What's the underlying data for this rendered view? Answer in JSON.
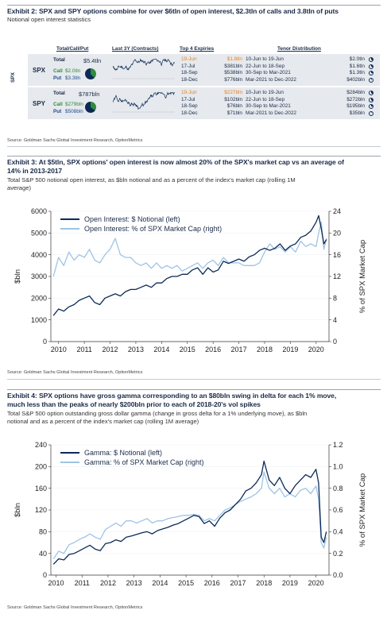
{
  "exhibit2": {
    "title": "Exhibit 2: SPX and SPY options combine for over $6tln of open interest, $2.3tln of calls and 3.8tln of puts",
    "subtitle": "Notional open interest statistics",
    "headers": {
      "tcp": "Total/Call/Put",
      "last3y": "Last 3Y (Contracts)",
      "top4": "Top 4 Expiries",
      "tenor": "Tenor Distribution"
    },
    "side_label": "SPX",
    "rows": [
      {
        "ticker": "SPX",
        "total_label": "Total",
        "total_value": "$5.4tln",
        "call_label": "Call",
        "call_value": "$2.0tln",
        "put_label": "Put",
        "put_value": "$3.3tln",
        "call_share": 0.38,
        "expiries": [
          {
            "date": "19-Jun",
            "value": "$1.8tln",
            "highlight": true
          },
          {
            "date": "17-Jul",
            "value": "$381bln",
            "highlight": false
          },
          {
            "date": "18-Sep",
            "value": "$538bln",
            "highlight": false
          },
          {
            "date": "18-Dec",
            "value": "$776bln",
            "highlight": false
          }
        ],
        "tenors": [
          {
            "range": "10-Jun to 19-Jun",
            "value": "$2.0tln",
            "share": 0.37
          },
          {
            "range": "22-Jun to 18-Sep",
            "value": "$1.6tln",
            "share": 0.3
          },
          {
            "range": "30-Sep to Mar-2021",
            "value": "$1.3tln",
            "share": 0.24
          },
          {
            "range": "Mar-2021 to Dec-2022",
            "value": "$402bln",
            "share": 0.07
          }
        ]
      },
      {
        "ticker": "SPY",
        "total_label": "Total",
        "total_value": "$787bln",
        "call_label": "Call",
        "call_value": "$279bln",
        "put_label": "Put",
        "put_value": "$508bln",
        "call_share": 0.35,
        "expiries": [
          {
            "date": "19-Jun",
            "value": "$227bln",
            "highlight": true
          },
          {
            "date": "17-Jul",
            "value": "$102bln",
            "highlight": false
          },
          {
            "date": "18-Sep",
            "value": "$76bln",
            "highlight": false
          },
          {
            "date": "18-Dec",
            "value": "$71bln",
            "highlight": false
          }
        ],
        "tenors": [
          {
            "range": "10-Jun to 19-Jun",
            "value": "$284bln",
            "share": 0.36
          },
          {
            "range": "22-Jun to 18-Sep",
            "value": "$272bln",
            "share": 0.35
          },
          {
            "range": "30-Sep to Mar-2021",
            "value": "$195bln",
            "share": 0.25
          },
          {
            "range": "Mar-2021 to Dec-2022",
            "value": "$35bln",
            "share": 0.04
          }
        ]
      }
    ],
    "source": "Source: Goldman Sachs Global Investment Research, OptionMetrics"
  },
  "exhibit3": {
    "title_line1": "Exhibit 3: At $5tln, SPX options' open interest is now almost 20% of the SPX's market cap vs an average of",
    "title_line2": "14% in 2013-2017",
    "subtitle_line1": "Total S&P 500 notional open interest, as $bln notional and as a percent of the index's market cap (rolling 1M",
    "subtitle_line2": "average)",
    "source": "Source: Goldman Sachs Global Investment Research, OptionMetrics"
  },
  "exhibit4": {
    "title_line1": "Exhibit 4: SPX options have gross gamma corresponding to an $80bln swing in delta for each 1% move,",
    "title_line2": "much less than the peaks of nearly $200bln prior to each of 2018-20's vol spikes",
    "subtitle_line1": "Total S&P 500 option outstanding gross dollar gamma (change in gross delta for a 1% underlying move), as $bln",
    "subtitle_line2": "notional and as a percent of the index's market cap (rolling 1M average)",
    "source": "Source: Goldman Sachs Global Investment Research, OptionMetrics"
  },
  "colors": {
    "dark": "#0c2a57",
    "light": "#9ec3e6",
    "call": "#2e8c3c",
    "put": "#1d4d8c",
    "highlight": "#e8811a"
  },
  "chart_data": [
    {
      "type": "line",
      "title": "",
      "x_range": [
        2009.7,
        2020.5
      ],
      "x_ticks": [
        2010,
        2011,
        2012,
        2013,
        2014,
        2015,
        2016,
        2017,
        2018,
        2019,
        2020
      ],
      "ylabel": "$bln",
      "ylim": [
        0,
        6000
      ],
      "y_ticks": [
        0,
        1000,
        2000,
        3000,
        4000,
        5000,
        6000
      ],
      "y2label": "% of SPX Market Cap",
      "y2lim": [
        0,
        24
      ],
      "y2_ticks": [
        0,
        4,
        8,
        12,
        16,
        20,
        24
      ],
      "legend_position": "top-left",
      "series": [
        {
          "name": "Open Interest: $ Notional (left)",
          "axis": "left",
          "color": "#0c2a57",
          "x": [
            2009.8,
            2010.0,
            2010.2,
            2010.4,
            2010.6,
            2010.8,
            2011.0,
            2011.2,
            2011.4,
            2011.6,
            2011.8,
            2012.0,
            2012.2,
            2012.4,
            2012.6,
            2012.8,
            2013.0,
            2013.2,
            2013.4,
            2013.6,
            2013.8,
            2014.0,
            2014.2,
            2014.4,
            2014.6,
            2014.8,
            2015.0,
            2015.2,
            2015.4,
            2015.6,
            2015.8,
            2016.0,
            2016.2,
            2016.4,
            2016.6,
            2016.8,
            2017.0,
            2017.2,
            2017.4,
            2017.6,
            2017.8,
            2018.0,
            2018.2,
            2018.4,
            2018.6,
            2018.8,
            2019.0,
            2019.2,
            2019.4,
            2019.6,
            2019.8,
            2020.0,
            2020.1,
            2020.2,
            2020.3,
            2020.4
          ],
          "y": [
            1200,
            1500,
            1400,
            1600,
            1700,
            1900,
            2000,
            2100,
            1800,
            1700,
            2000,
            2100,
            2200,
            2100,
            2300,
            2400,
            2400,
            2500,
            2600,
            2500,
            2700,
            2700,
            2900,
            3000,
            3000,
            3100,
            3100,
            3300,
            3400,
            3100,
            3400,
            3200,
            3300,
            3700,
            3600,
            3700,
            3800,
            3700,
            3900,
            4000,
            4200,
            4300,
            4200,
            4300,
            4500,
            4200,
            4400,
            4500,
            4800,
            4900,
            5100,
            5500,
            5800,
            5200,
            4500,
            4700
          ]
        },
        {
          "name": "Open Interest: % of SPX Market Cap (right)",
          "axis": "right",
          "color": "#9ec3e6",
          "x": [
            2009.8,
            2010.0,
            2010.2,
            2010.4,
            2010.6,
            2010.8,
            2011.0,
            2011.2,
            2011.4,
            2011.6,
            2011.8,
            2012.0,
            2012.2,
            2012.4,
            2012.6,
            2012.8,
            2013.0,
            2013.2,
            2013.4,
            2013.6,
            2013.8,
            2014.0,
            2014.2,
            2014.4,
            2014.6,
            2014.8,
            2015.0,
            2015.2,
            2015.4,
            2015.6,
            2015.8,
            2016.0,
            2016.2,
            2016.4,
            2016.6,
            2016.8,
            2017.0,
            2017.2,
            2017.4,
            2017.6,
            2017.8,
            2018.0,
            2018.2,
            2018.4,
            2018.6,
            2018.8,
            2019.0,
            2019.2,
            2019.4,
            2019.6,
            2019.8,
            2020.0,
            2020.1,
            2020.2,
            2020.3,
            2020.4
          ],
          "y": [
            12.0,
            15.5,
            14.0,
            16.5,
            15.0,
            16.0,
            15.5,
            17.0,
            15.0,
            14.5,
            16.0,
            17.0,
            19.0,
            16.0,
            15.5,
            15.5,
            14.5,
            14.0,
            14.5,
            13.5,
            14.5,
            13.5,
            14.0,
            13.5,
            14.0,
            13.0,
            13.5,
            14.0,
            14.5,
            13.5,
            14.5,
            15.0,
            14.0,
            15.5,
            14.5,
            14.5,
            14.5,
            14.0,
            14.0,
            14.0,
            14.5,
            16.5,
            18.0,
            17.0,
            17.5,
            16.5,
            17.5,
            16.5,
            18.5,
            17.5,
            18.0,
            17.5,
            20.0,
            22.0,
            17.0,
            19.0
          ]
        }
      ]
    },
    {
      "type": "line",
      "title": "",
      "x_range": [
        2009.8,
        2020.5
      ],
      "x_ticks": [
        2010,
        2011,
        2012,
        2013,
        2014,
        2015,
        2016,
        2017,
        2018,
        2019,
        2020
      ],
      "ylabel": "$bln",
      "ylim": [
        0,
        240
      ],
      "y_ticks": [
        0,
        40,
        80,
        120,
        160,
        200,
        240
      ],
      "y2label": "% of SPX Market Cap",
      "y2lim": [
        0.0,
        1.2
      ],
      "y2_ticks": [
        0.0,
        0.2,
        0.4,
        0.6,
        0.8,
        1.0,
        1.2
      ],
      "legend_position": "top-left",
      "series": [
        {
          "name": "Gamma: $ Notional (left)",
          "axis": "left",
          "color": "#0c2a57",
          "x": [
            2009.9,
            2010.1,
            2010.3,
            2010.5,
            2010.7,
            2010.9,
            2011.1,
            2011.3,
            2011.5,
            2011.7,
            2011.9,
            2012.1,
            2012.3,
            2012.5,
            2012.7,
            2012.9,
            2013.1,
            2013.3,
            2013.5,
            2013.7,
            2013.9,
            2014.1,
            2014.3,
            2014.5,
            2014.7,
            2014.9,
            2015.1,
            2015.3,
            2015.5,
            2015.7,
            2015.9,
            2016.1,
            2016.3,
            2016.5,
            2016.7,
            2016.9,
            2017.1,
            2017.3,
            2017.5,
            2017.7,
            2017.9,
            2018.0,
            2018.2,
            2018.4,
            2018.6,
            2018.8,
            2019.0,
            2019.2,
            2019.4,
            2019.6,
            2019.8,
            2020.0,
            2020.1,
            2020.2,
            2020.3,
            2020.4
          ],
          "y": [
            20,
            30,
            28,
            38,
            40,
            45,
            50,
            55,
            48,
            45,
            58,
            60,
            65,
            62,
            70,
            72,
            75,
            78,
            80,
            76,
            82,
            85,
            88,
            92,
            95,
            100,
            105,
            110,
            108,
            95,
            100,
            90,
            105,
            115,
            120,
            130,
            140,
            155,
            160,
            170,
            185,
            210,
            175,
            165,
            180,
            160,
            150,
            165,
            175,
            185,
            180,
            195,
            170,
            70,
            60,
            80
          ]
        },
        {
          "name": "Gamma: % of SPX Market Cap (right)",
          "axis": "right",
          "color": "#9ec3e6",
          "x": [
            2009.9,
            2010.1,
            2010.3,
            2010.5,
            2010.7,
            2010.9,
            2011.1,
            2011.3,
            2011.5,
            2011.7,
            2011.9,
            2012.1,
            2012.3,
            2012.5,
            2012.7,
            2012.9,
            2013.1,
            2013.3,
            2013.5,
            2013.7,
            2013.9,
            2014.1,
            2014.3,
            2014.5,
            2014.7,
            2014.9,
            2015.1,
            2015.3,
            2015.5,
            2015.7,
            2015.9,
            2016.1,
            2016.3,
            2016.5,
            2016.7,
            2016.9,
            2017.1,
            2017.3,
            2017.5,
            2017.7,
            2017.9,
            2018.0,
            2018.2,
            2018.4,
            2018.6,
            2018.8,
            2019.0,
            2019.2,
            2019.4,
            2019.6,
            2019.8,
            2020.0,
            2020.1,
            2020.2,
            2020.3,
            2020.4
          ],
          "y": [
            0.15,
            0.22,
            0.2,
            0.28,
            0.3,
            0.33,
            0.35,
            0.38,
            0.35,
            0.33,
            0.42,
            0.45,
            0.48,
            0.45,
            0.5,
            0.5,
            0.48,
            0.5,
            0.52,
            0.48,
            0.5,
            0.5,
            0.52,
            0.53,
            0.54,
            0.55,
            0.55,
            0.56,
            0.55,
            0.5,
            0.52,
            0.5,
            0.55,
            0.6,
            0.62,
            0.65,
            0.68,
            0.7,
            0.72,
            0.75,
            0.8,
            0.95,
            0.8,
            0.75,
            0.8,
            0.72,
            0.75,
            0.72,
            0.78,
            0.8,
            0.75,
            0.82,
            0.7,
            0.3,
            0.25,
            0.35
          ]
        }
      ]
    }
  ]
}
